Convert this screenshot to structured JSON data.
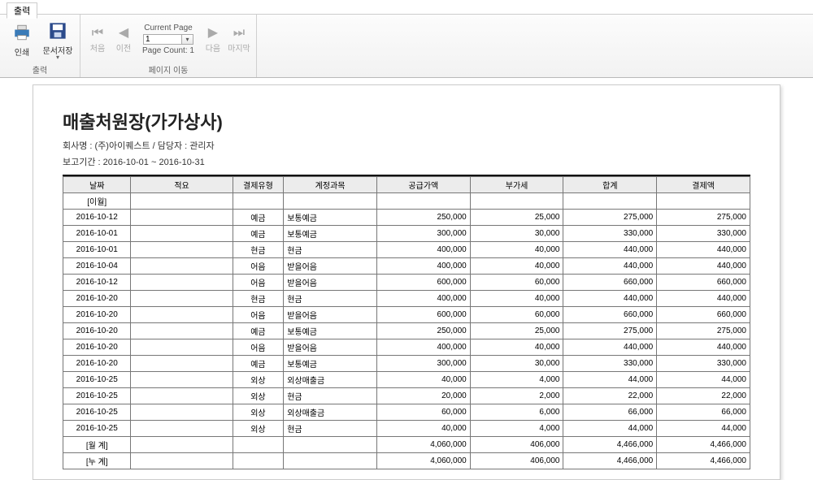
{
  "ribbon": {
    "tab_label": "출력",
    "group_output": {
      "label": "출력",
      "print": "인쇄",
      "save_doc": "문서저장"
    },
    "group_page": {
      "label": "페이지 이동",
      "first": "처음",
      "prev": "이전",
      "next": "다음",
      "last": "마지막",
      "current_page_label": "Current Page",
      "current_page": "1",
      "page_count_label": "Page Count: 1"
    }
  },
  "report": {
    "title": "매출처원장(가가상사)",
    "company_line": "회사명 : (주)아이퀘스트 / 담당자 : 관리자",
    "period_line": "보고기간 :  2016-10-01 ~ 2016-10-31",
    "columns": [
      "날짜",
      "적요",
      "결제유형",
      "계정과목",
      "공급가액",
      "부가세",
      "합계",
      "결제액"
    ],
    "col_widths": [
      "80",
      "120",
      "60",
      "110",
      "110",
      "110",
      "110",
      "110"
    ],
    "pre_rows": [
      {
        "date": "[이월]"
      }
    ],
    "rows": [
      {
        "date": "2016-10-12",
        "type": "예금",
        "account": "보통예금",
        "supply": "250,000",
        "vat": "25,000",
        "total": "275,000",
        "pay": "275,000"
      },
      {
        "date": "2016-10-01",
        "type": "예금",
        "account": "보통예금",
        "supply": "300,000",
        "vat": "30,000",
        "total": "330,000",
        "pay": "330,000"
      },
      {
        "date": "2016-10-01",
        "type": "현금",
        "account": "현금",
        "supply": "400,000",
        "vat": "40,000",
        "total": "440,000",
        "pay": "440,000"
      },
      {
        "date": "2016-10-04",
        "type": "어음",
        "account": "받을어음",
        "supply": "400,000",
        "vat": "40,000",
        "total": "440,000",
        "pay": "440,000"
      },
      {
        "date": "2016-10-12",
        "type": "어음",
        "account": "받을어음",
        "supply": "600,000",
        "vat": "60,000",
        "total": "660,000",
        "pay": "660,000"
      },
      {
        "date": "2016-10-20",
        "type": "현금",
        "account": "현금",
        "supply": "400,000",
        "vat": "40,000",
        "total": "440,000",
        "pay": "440,000"
      },
      {
        "date": "2016-10-20",
        "type": "어음",
        "account": "받을어음",
        "supply": "600,000",
        "vat": "60,000",
        "total": "660,000",
        "pay": "660,000"
      },
      {
        "date": "2016-10-20",
        "type": "예금",
        "account": "보통예금",
        "supply": "250,000",
        "vat": "25,000",
        "total": "275,000",
        "pay": "275,000"
      },
      {
        "date": "2016-10-20",
        "type": "어음",
        "account": "받을어음",
        "supply": "400,000",
        "vat": "40,000",
        "total": "440,000",
        "pay": "440,000"
      },
      {
        "date": "2016-10-20",
        "type": "예금",
        "account": "보통예금",
        "supply": "300,000",
        "vat": "30,000",
        "total": "330,000",
        "pay": "330,000"
      },
      {
        "date": "2016-10-25",
        "type": "외상",
        "account": "외상매출금",
        "supply": "40,000",
        "vat": "4,000",
        "total": "44,000",
        "pay": "44,000"
      },
      {
        "date": "2016-10-25",
        "type": "외상",
        "account": "현금",
        "supply": "20,000",
        "vat": "2,000",
        "total": "22,000",
        "pay": "22,000"
      },
      {
        "date": "2016-10-25",
        "type": "외상",
        "account": "외상매출금",
        "supply": "60,000",
        "vat": "6,000",
        "total": "66,000",
        "pay": "66,000"
      },
      {
        "date": "2016-10-25",
        "type": "외상",
        "account": "현금",
        "supply": "40,000",
        "vat": "4,000",
        "total": "44,000",
        "pay": "44,000"
      }
    ],
    "totals": [
      {
        "label": "[월  계]",
        "supply": "4,060,000",
        "vat": "406,000",
        "total": "4,466,000",
        "pay": "4,466,000"
      },
      {
        "label": "[누  계]",
        "supply": "4,060,000",
        "vat": "406,000",
        "total": "4,466,000",
        "pay": "4,466,000"
      }
    ]
  },
  "colors": {
    "header_bg": "#ececec",
    "border": "#777777",
    "thick_border": "#000000"
  }
}
